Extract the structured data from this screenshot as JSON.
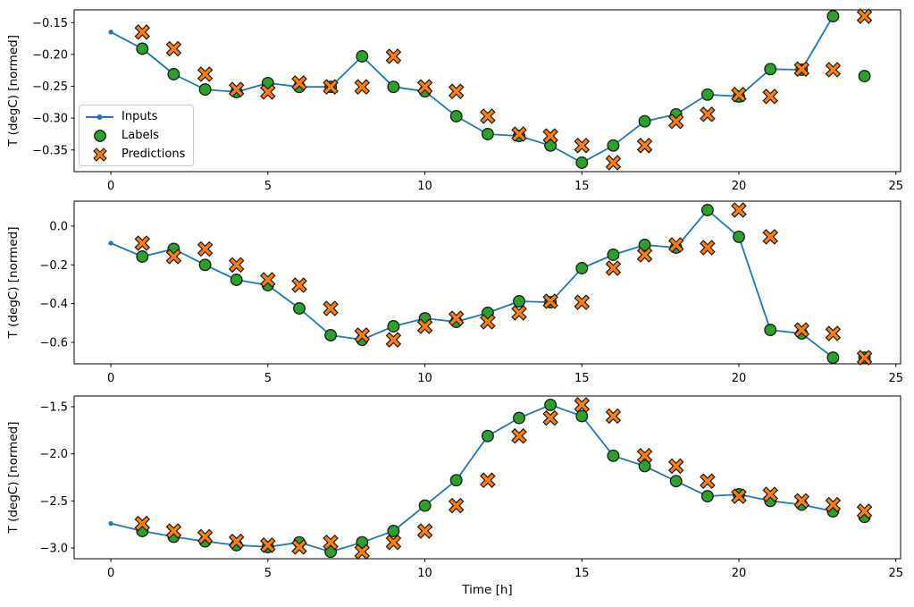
{
  "figure": {
    "background": "#ffffff",
    "axis_color": "#000000",
    "text_color": "#000000",
    "xlabel": "Time [h]",
    "ylabel": "T (degC) [normed]"
  },
  "legend": {
    "location": "center-left of first subplot",
    "items": [
      {
        "label": "Inputs",
        "marker": "line-dot",
        "color": "#1f77b4"
      },
      {
        "label": "Labels",
        "marker": "circle",
        "color": "#2ca02c",
        "edge": "#1a1a1a"
      },
      {
        "label": "Predictions",
        "marker": "X",
        "color": "#ff7f0e",
        "edge": "#1a1a1a"
      }
    ]
  },
  "chart_data": [
    {
      "type": "line",
      "title": "",
      "xlabel": "",
      "ylabel": "T (degC) [normed]",
      "xlim": [
        -1.17,
        25.15
      ],
      "ylim": [
        -0.384,
        -0.13
      ],
      "xticks": [
        0,
        5,
        10,
        15,
        20,
        25
      ],
      "xticklabels": [
        "0",
        "5",
        "10",
        "15",
        "20",
        "25"
      ],
      "yticks": [
        -0.15,
        -0.2,
        -0.25,
        -0.3,
        -0.35
      ],
      "yticklabels": [
        "−0.15",
        "−0.20",
        "−0.25",
        "−0.30",
        "−0.35"
      ],
      "grid": false,
      "series": [
        {
          "name": "Inputs",
          "type": "line",
          "marker": "dot",
          "color": "#1f77b4",
          "x": [
            0,
            1,
            2,
            3,
            4,
            5,
            6,
            7,
            8,
            9,
            10,
            11,
            12,
            13,
            14,
            15,
            16,
            17,
            18,
            19,
            20,
            21,
            22,
            23
          ],
          "y": [
            -0.165,
            -0.191,
            -0.231,
            -0.255,
            -0.259,
            -0.245,
            -0.251,
            -0.251,
            -0.203,
            -0.251,
            -0.258,
            -0.297,
            -0.325,
            -0.328,
            -0.343,
            -0.37,
            -0.343,
            -0.305,
            -0.294,
            -0.263,
            -0.266,
            -0.223,
            -0.224,
            -0.14
          ]
        },
        {
          "name": "Labels",
          "type": "scatter",
          "marker": "circle",
          "color": "#2ca02c",
          "x": [
            1,
            2,
            3,
            4,
            5,
            6,
            7,
            8,
            9,
            10,
            11,
            12,
            13,
            14,
            15,
            16,
            17,
            18,
            19,
            20,
            21,
            22,
            23,
            24
          ],
          "y": [
            -0.191,
            -0.231,
            -0.255,
            -0.259,
            -0.245,
            -0.251,
            -0.251,
            -0.203,
            -0.251,
            -0.258,
            -0.297,
            -0.325,
            -0.328,
            -0.343,
            -0.37,
            -0.343,
            -0.305,
            -0.294,
            -0.263,
            -0.266,
            -0.223,
            -0.224,
            -0.14,
            -0.234
          ]
        },
        {
          "name": "Predictions",
          "type": "scatter",
          "marker": "X",
          "color": "#ff7f0e",
          "x": [
            1,
            2,
            3,
            4,
            5,
            6,
            7,
            8,
            9,
            10,
            11,
            12,
            13,
            14,
            15,
            16,
            17,
            18,
            19,
            20,
            21,
            22,
            23,
            24
          ],
          "y": [
            -0.165,
            -0.191,
            -0.231,
            -0.255,
            -0.259,
            -0.245,
            -0.251,
            -0.251,
            -0.203,
            -0.251,
            -0.258,
            -0.297,
            -0.325,
            -0.328,
            -0.343,
            -0.37,
            -0.343,
            -0.305,
            -0.294,
            -0.263,
            -0.266,
            -0.223,
            -0.224,
            -0.14
          ]
        }
      ]
    },
    {
      "type": "line",
      "title": "",
      "xlabel": "",
      "ylabel": "T (degC) [normed]",
      "xlim": [
        -1.17,
        25.15
      ],
      "ylim": [
        -0.711,
        0.129
      ],
      "xticks": [
        0,
        5,
        10,
        15,
        20,
        25
      ],
      "xticklabels": [
        "0",
        "5",
        "10",
        "15",
        "20",
        "25"
      ],
      "yticks": [
        0.0,
        -0.2,
        -0.4,
        -0.6
      ],
      "yticklabels": [
        "0.0",
        "−0.2",
        "−0.4",
        "−0.6"
      ],
      "grid": false,
      "series": [
        {
          "name": "Inputs",
          "type": "line",
          "marker": "dot",
          "color": "#1f77b4",
          "x": [
            0,
            1,
            2,
            3,
            4,
            5,
            6,
            7,
            8,
            9,
            10,
            11,
            12,
            13,
            14,
            15,
            16,
            17,
            18,
            19,
            20,
            21,
            22,
            23
          ],
          "y": [
            -0.088,
            -0.157,
            -0.118,
            -0.2,
            -0.277,
            -0.305,
            -0.425,
            -0.563,
            -0.587,
            -0.517,
            -0.476,
            -0.494,
            -0.448,
            -0.388,
            -0.393,
            -0.217,
            -0.148,
            -0.097,
            -0.111,
            0.083,
            -0.055,
            -0.536,
            -0.554,
            -0.679
          ]
        },
        {
          "name": "Labels",
          "type": "scatter",
          "marker": "circle",
          "color": "#2ca02c",
          "x": [
            1,
            2,
            3,
            4,
            5,
            6,
            7,
            8,
            9,
            10,
            11,
            12,
            13,
            14,
            15,
            16,
            17,
            18,
            19,
            20,
            21,
            22,
            23,
            24
          ],
          "y": [
            -0.157,
            -0.118,
            -0.2,
            -0.277,
            -0.305,
            -0.425,
            -0.563,
            -0.587,
            -0.517,
            -0.476,
            -0.494,
            -0.448,
            -0.388,
            -0.393,
            -0.217,
            -0.148,
            -0.097,
            -0.111,
            0.083,
            -0.055,
            -0.536,
            -0.554,
            -0.679,
            -0.679
          ]
        },
        {
          "name": "Predictions",
          "type": "scatter",
          "marker": "X",
          "color": "#ff7f0e",
          "x": [
            1,
            2,
            3,
            4,
            5,
            6,
            7,
            8,
            9,
            10,
            11,
            12,
            13,
            14,
            15,
            16,
            17,
            18,
            19,
            20,
            21,
            22,
            23,
            24
          ],
          "y": [
            -0.088,
            -0.157,
            -0.118,
            -0.2,
            -0.277,
            -0.305,
            -0.425,
            -0.563,
            -0.587,
            -0.517,
            -0.476,
            -0.494,
            -0.448,
            -0.388,
            -0.393,
            -0.217,
            -0.148,
            -0.097,
            -0.111,
            0.083,
            -0.055,
            -0.536,
            -0.554,
            -0.679
          ]
        }
      ]
    },
    {
      "type": "line",
      "title": "",
      "xlabel": "Time [h]",
      "ylabel": "T (degC) [normed]",
      "xlim": [
        -1.17,
        25.15
      ],
      "ylim": [
        -3.114,
        -1.386
      ],
      "xticks": [
        0,
        5,
        10,
        15,
        20,
        25
      ],
      "xticklabels": [
        "0",
        "5",
        "10",
        "15",
        "20",
        "25"
      ],
      "yticks": [
        -1.5,
        -2.0,
        -2.5,
        -3.0
      ],
      "yticklabels": [
        "−1.5",
        "−2.0",
        "−2.5",
        "−3.0"
      ],
      "grid": false,
      "series": [
        {
          "name": "Inputs",
          "type": "line",
          "marker": "dot",
          "color": "#1f77b4",
          "x": [
            0,
            1,
            2,
            3,
            4,
            5,
            6,
            7,
            8,
            9,
            10,
            11,
            12,
            13,
            14,
            15,
            16,
            17,
            18,
            19,
            20,
            21,
            22,
            23
          ],
          "y": [
            -2.74,
            -2.82,
            -2.88,
            -2.93,
            -2.97,
            -2.99,
            -2.94,
            -3.04,
            -2.94,
            -2.82,
            -2.55,
            -2.28,
            -1.81,
            -1.62,
            -1.48,
            -1.6,
            -2.02,
            -2.13,
            -2.29,
            -2.45,
            -2.43,
            -2.5,
            -2.54,
            -2.61
          ]
        },
        {
          "name": "Labels",
          "type": "scatter",
          "marker": "circle",
          "color": "#2ca02c",
          "x": [
            1,
            2,
            3,
            4,
            5,
            6,
            7,
            8,
            9,
            10,
            11,
            12,
            13,
            14,
            15,
            16,
            17,
            18,
            19,
            20,
            21,
            22,
            23,
            24
          ],
          "y": [
            -2.82,
            -2.88,
            -2.93,
            -2.97,
            -2.99,
            -2.94,
            -3.04,
            -2.94,
            -2.82,
            -2.55,
            -2.28,
            -1.81,
            -1.62,
            -1.48,
            -1.6,
            -2.02,
            -2.13,
            -2.29,
            -2.45,
            -2.43,
            -2.5,
            -2.54,
            -2.61,
            -2.67
          ]
        },
        {
          "name": "Predictions",
          "type": "scatter",
          "marker": "X",
          "color": "#ff7f0e",
          "x": [
            1,
            2,
            3,
            4,
            5,
            6,
            7,
            8,
            9,
            10,
            11,
            12,
            13,
            14,
            15,
            16,
            17,
            18,
            19,
            20,
            21,
            22,
            23,
            24
          ],
          "y": [
            -2.74,
            -2.82,
            -2.88,
            -2.93,
            -2.97,
            -2.99,
            -2.94,
            -3.04,
            -2.94,
            -2.82,
            -2.55,
            -2.28,
            -1.81,
            -1.62,
            -1.48,
            -1.6,
            -2.02,
            -2.13,
            -2.29,
            -2.45,
            -2.43,
            -2.5,
            -2.54,
            -2.61
          ]
        }
      ]
    }
  ]
}
